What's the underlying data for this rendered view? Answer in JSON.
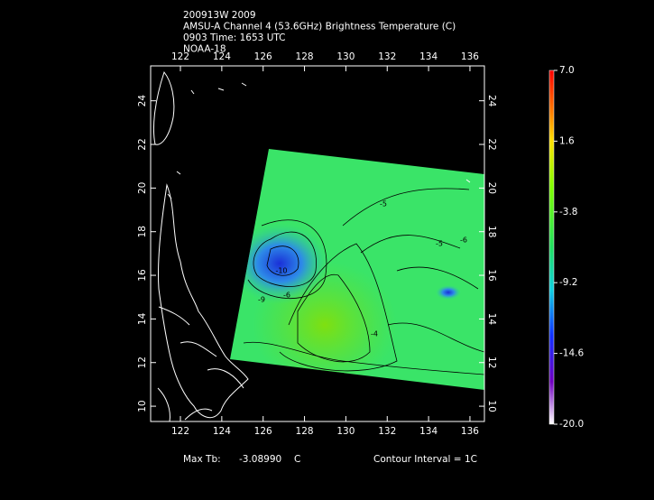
{
  "chart_data": {
    "type": "map",
    "title_lines": [
      "200913W 2009",
      "AMSU-A Channel 4 (53.6GHz) Brightness Temperature (C)",
      "0903 Time: 1653 UTC",
      "NOAA-18"
    ],
    "xlim": [
      120.56,
      136.7
    ],
    "xticks": [
      122,
      124,
      126,
      128,
      130,
      132,
      134,
      136
    ],
    "ylim": [
      9.3,
      25.6
    ],
    "yticks": [
      10,
      12,
      14,
      16,
      18,
      20,
      22,
      24
    ],
    "colorbar": {
      "lim": [
        -20,
        7
      ],
      "ticks": [
        {
          "value": 7,
          "label": "7.0"
        },
        1.6,
        -3.8,
        -9.2,
        -14.6,
        {
          "value": -20,
          "label": "-20.0"
        }
      ]
    },
    "contour_labels": [
      "-5",
      "-10",
      "-9",
      "-6",
      "-5",
      "-6",
      "-4"
    ],
    "footer": {
      "max_label": "Max Tb:",
      "max_value": "-3.08990",
      "max_unit": "C",
      "contour": "Contour Interval = 1C"
    }
  }
}
